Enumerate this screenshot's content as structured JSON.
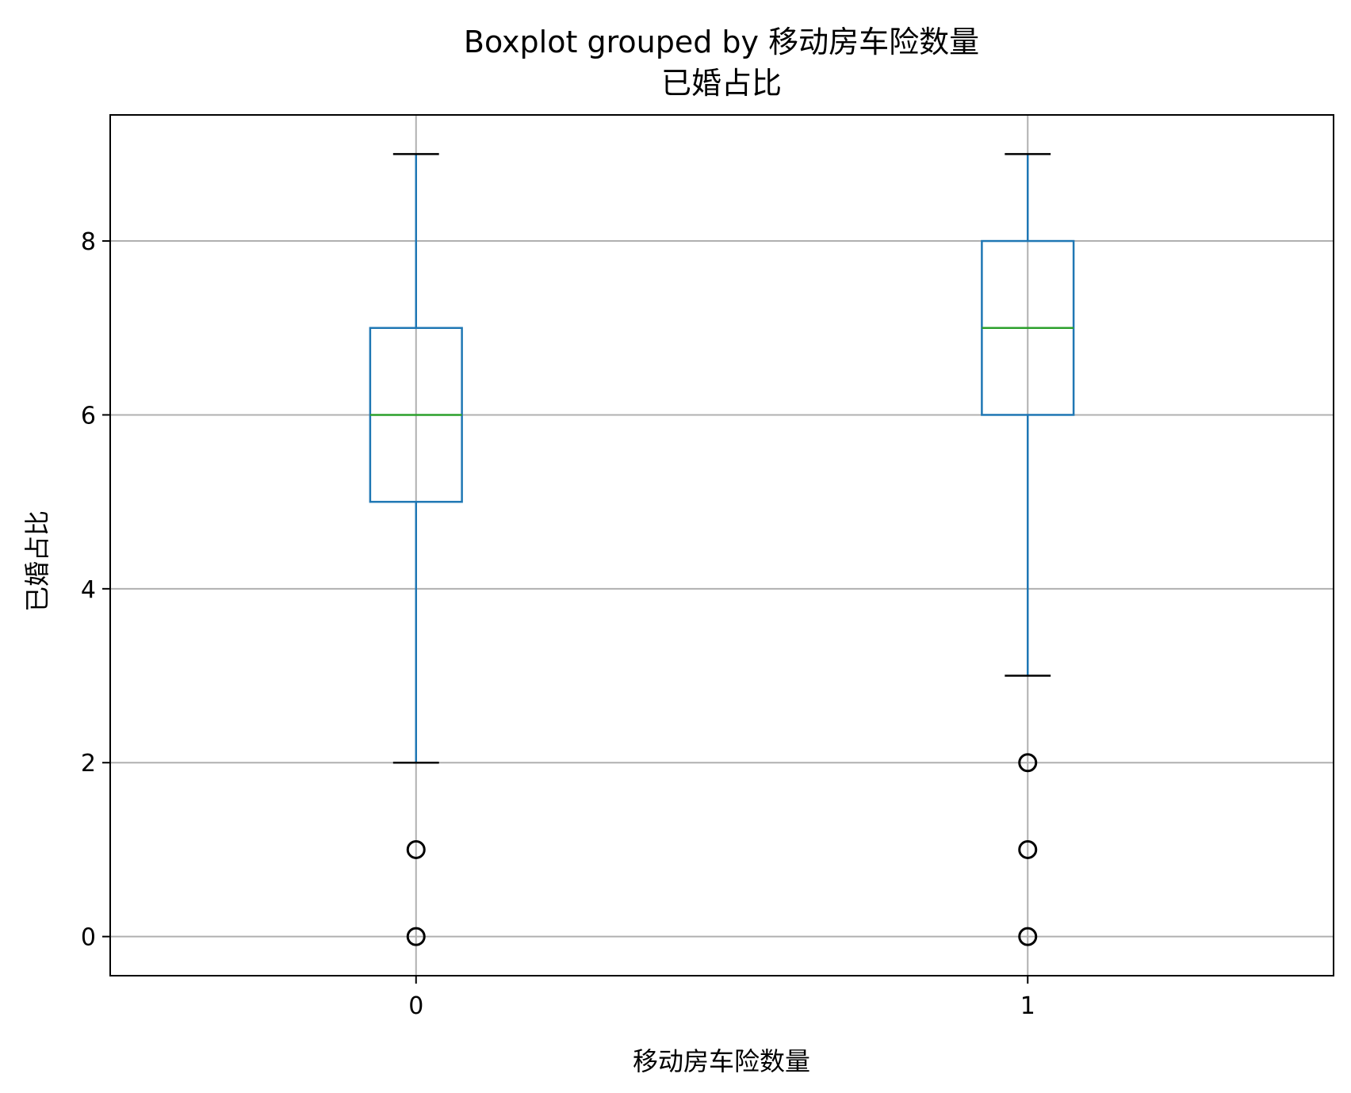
{
  "chart_data": {
    "type": "boxplot",
    "title": "Boxplot grouped by 移动房车险数量",
    "subtitle": "已婚占比",
    "xlabel": "移动房车险数量",
    "ylabel": "已婚占比",
    "ylim": [
      -0.45,
      9.45
    ],
    "yticks": [
      0,
      2,
      4,
      6,
      8
    ],
    "grid": true,
    "categories": [
      "0",
      "1"
    ],
    "boxes": [
      {
        "category": "0",
        "whisker_low": 2,
        "q1": 5,
        "median": 6,
        "q3": 7,
        "whisker_high": 9,
        "outliers": [
          1,
          0
        ]
      },
      {
        "category": "1",
        "whisker_low": 3,
        "q1": 6,
        "median": 7,
        "q3": 8,
        "whisker_high": 9,
        "outliers": [
          2,
          1,
          0
        ]
      }
    ],
    "colors": {
      "box": "#1f77b4",
      "median": "#2ca02c",
      "whisker_cap": "#000000",
      "outlier": "#000000",
      "grid": "#b0b0b0"
    }
  }
}
